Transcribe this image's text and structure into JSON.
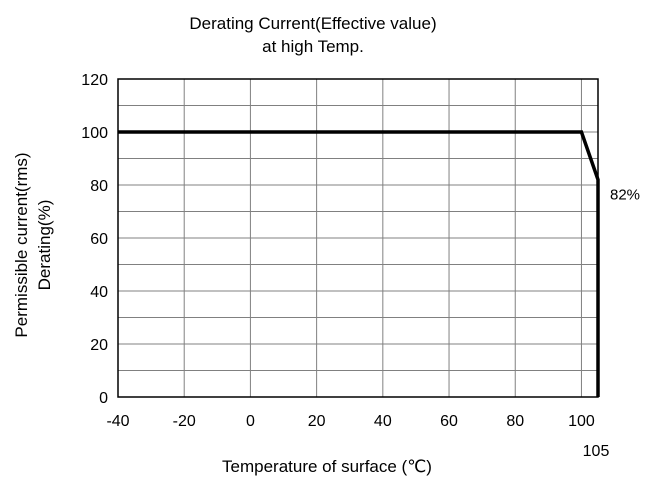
{
  "chart_data": {
    "type": "line",
    "title_line1": "Derating Current(Effective value)",
    "title_line2": "at high Temp.",
    "xlabel": "Temperature of surface (℃)",
    "ylabel_line1": "Permissible current(rms)",
    "ylabel_line2": "Derating(%)",
    "xlim": [
      -40,
      105
    ],
    "ylim": [
      0,
      120
    ],
    "x_ticks": [
      -40,
      -20,
      0,
      20,
      40,
      60,
      80,
      100
    ],
    "x_tick_labels": [
      "-40",
      "-20",
      "0",
      "20",
      "40",
      "60",
      "80",
      "100"
    ],
    "x_extra_tick": {
      "value": 105,
      "label": "105"
    },
    "y_ticks": [
      0,
      20,
      40,
      60,
      80,
      100,
      120
    ],
    "y_tick_labels": [
      "0",
      "20",
      "40",
      "60",
      "80",
      "100",
      "120"
    ],
    "grid": true,
    "series": [
      {
        "x": [
          -40,
          100,
          105,
          105
        ],
        "y": [
          100,
          100,
          82,
          0
        ]
      }
    ],
    "annotations": [
      {
        "text": "82%",
        "x": 105,
        "y": 82
      }
    ],
    "colors": {
      "line": "#000000",
      "grid": "#808080",
      "frame": "#000000"
    }
  }
}
